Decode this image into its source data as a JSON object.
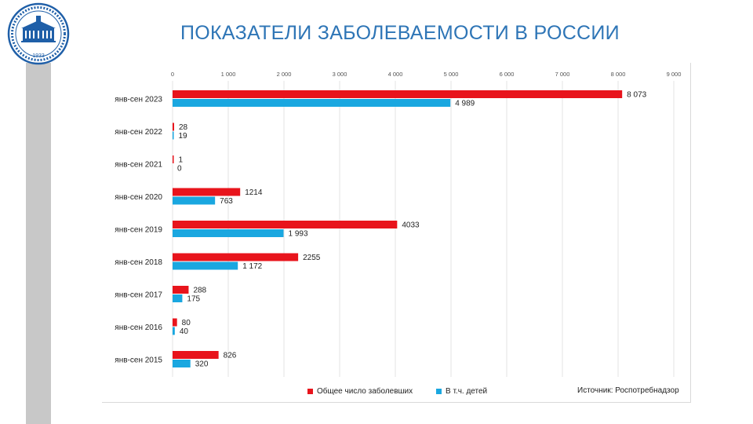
{
  "page": {
    "title": "ПОКАЗАТЕЛИ ЗАБОЛЕВАЕМОСТИ В РОССИИ",
    "logo_text": "1933"
  },
  "source_note": "Источник: Роспотребнадзор",
  "colors": {
    "title": "#2e75b6",
    "series_total": "#e8141c",
    "series_children": "#1aa7e0",
    "side_bar": "#c8c8c8"
  },
  "chart_data": {
    "type": "bar",
    "orientation": "horizontal",
    "categories": [
      "янв-сен 2023",
      "янв-сен 2022",
      "янв-сен 2021",
      "янв-сен 2020",
      "янв-сен 2019",
      "янв-сен 2018",
      "янв-сен 2017",
      "янв-сен 2016",
      "янв-сен 2015"
    ],
    "series": [
      {
        "name": "Общее число заболевших",
        "values": [
          8073,
          28,
          1,
          1214,
          4033,
          2255,
          288,
          80,
          826
        ],
        "labels": [
          "8 073",
          "28",
          "1",
          "1214",
          "4033",
          "2255",
          "288",
          "80",
          "826"
        ]
      },
      {
        "name": "В т.ч. детей",
        "values": [
          4989,
          19,
          0,
          763,
          1993,
          1172,
          175,
          40,
          320
        ],
        "labels": [
          "4 989",
          "19",
          "0",
          "763",
          "1 993",
          "1 172",
          "175",
          "40",
          "320"
        ]
      }
    ],
    "x_ticks": [
      0,
      1000,
      2000,
      3000,
      4000,
      5000,
      6000,
      7000,
      8000,
      9000
    ],
    "x_tick_labels": [
      "0",
      "1 000",
      "2 000",
      "3 000",
      "4 000",
      "5 000",
      "6 000",
      "7 000",
      "8 000",
      "9 000"
    ],
    "xlim": [
      0,
      9000
    ],
    "xaxis_position": "top",
    "grid": true,
    "legend_position": "bottom"
  }
}
